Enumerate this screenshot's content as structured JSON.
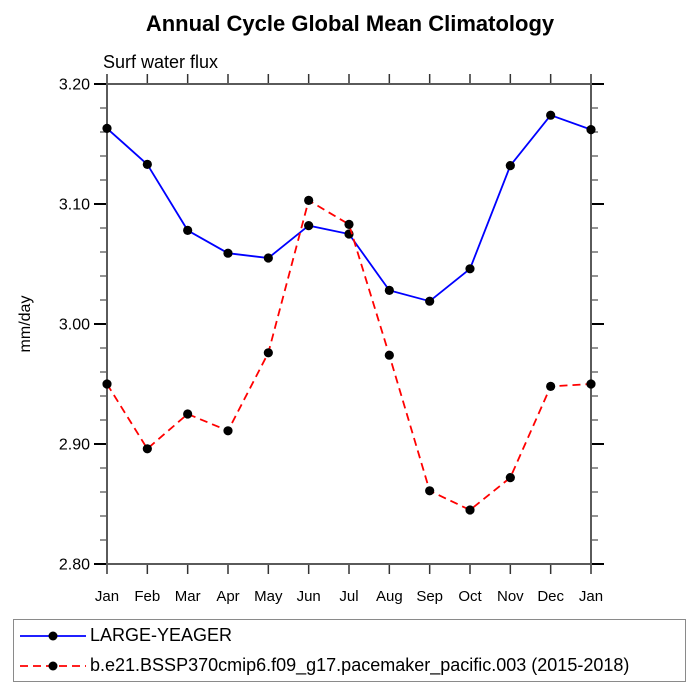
{
  "chart_data": {
    "type": "line",
    "title": "Annual Cycle Global Mean Climatology",
    "subtitle": "Surf water flux",
    "xlabel": "",
    "ylabel": "mm/day",
    "categories": [
      "Jan",
      "Feb",
      "Mar",
      "Apr",
      "May",
      "Jun",
      "Jul",
      "Aug",
      "Sep",
      "Oct",
      "Nov",
      "Dec",
      "Jan"
    ],
    "ylim": [
      2.8,
      3.2
    ],
    "ytick_labels": [
      "2.80",
      "2.90",
      "3.00",
      "3.10",
      "3.20"
    ],
    "ytick_step": 0.1,
    "yminor_step": 0.02,
    "grid": false,
    "legend_position": "bottom-left-box",
    "axis_color": "#5a5a5a",
    "text_color": "#000000",
    "series": [
      {
        "name": "LARGE-YEAGER",
        "line_color": "#0000ff",
        "line_style": "solid",
        "marker": "filled-circle",
        "marker_color": "#000000",
        "values": [
          3.163,
          3.133,
          3.078,
          3.059,
          3.055,
          3.082,
          3.075,
          3.028,
          3.019,
          3.046,
          3.132,
          3.174,
          3.162
        ]
      },
      {
        "name": "b.e21.BSSP370cmip6.f09_g17.pacemaker_pacific.003 (2015-2018)",
        "line_color": "#ff0000",
        "line_style": "dashed",
        "marker": "filled-circle",
        "marker_color": "#000000",
        "values": [
          2.95,
          2.896,
          2.925,
          2.911,
          2.976,
          3.103,
          3.083,
          2.974,
          2.861,
          2.845,
          2.872,
          2.948,
          2.95
        ]
      }
    ]
  }
}
